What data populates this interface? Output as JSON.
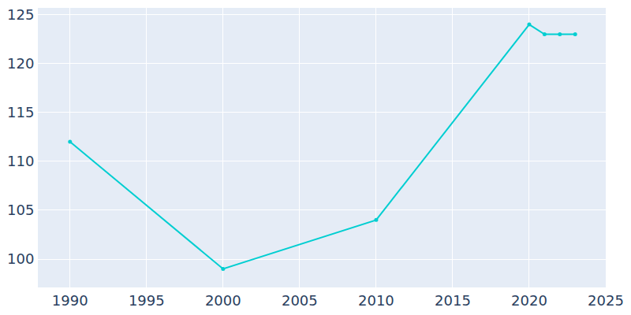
{
  "chart_data": {
    "type": "line",
    "x": [
      1990,
      2000,
      2010,
      2020,
      2021,
      2022,
      2023
    ],
    "values": [
      112,
      99,
      104,
      124,
      123,
      123,
      123
    ],
    "color": "#00ced1",
    "marker": "circle",
    "xlim": [
      1987.9,
      2025
    ],
    "xticks": [
      1990,
      1995,
      2000,
      2005,
      2010,
      2015,
      2020,
      2025
    ],
    "ylim": [
      97.1,
      125.7
    ],
    "yticks": [
      100,
      105,
      110,
      115,
      120,
      125
    ],
    "grid": true
  }
}
